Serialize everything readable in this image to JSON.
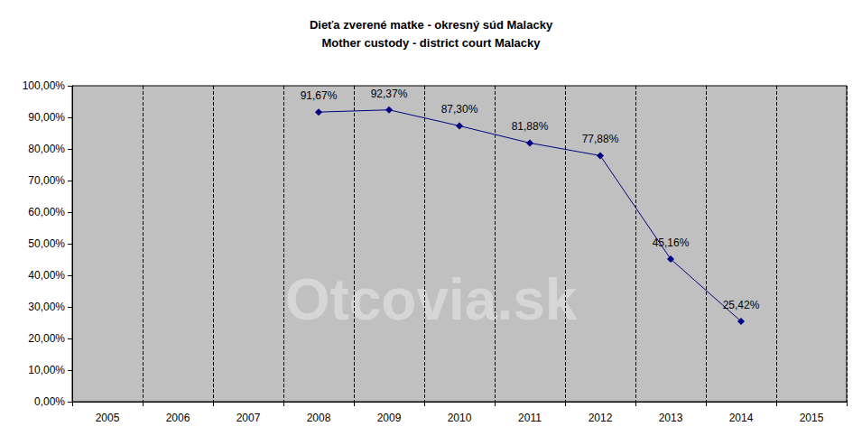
{
  "chart_data": {
    "type": "line",
    "title": "Dieťa zverené matke - okresný súd Malacky",
    "subtitle": "Mother custody - district court Malacky",
    "watermark": "Otcovia.sk",
    "categories": [
      "2005",
      "2006",
      "2007",
      "2008",
      "2009",
      "2010",
      "2011",
      "2012",
      "2013",
      "2014",
      "2015"
    ],
    "values": [
      null,
      null,
      null,
      91.67,
      92.37,
      87.3,
      81.88,
      77.88,
      45.16,
      25.42,
      null
    ],
    "value_labels": [
      null,
      null,
      null,
      "91,67%",
      "92,37%",
      "87,30%",
      "81,88%",
      "77,88%",
      "45,16%",
      "25,42%",
      null
    ],
    "color": "#000080",
    "marker": "diamond",
    "data_labels": true,
    "grid": "x",
    "ylim": [
      0,
      100
    ],
    "yticks": [
      {
        "value": 0,
        "label": "0,00%"
      },
      {
        "value": 10,
        "label": "10,00%"
      },
      {
        "value": 20,
        "label": "20,00%"
      },
      {
        "value": 30,
        "label": "30,00%"
      },
      {
        "value": 40,
        "label": "40,00%"
      },
      {
        "value": 50,
        "label": "50,00%"
      },
      {
        "value": 60,
        "label": "60,00%"
      },
      {
        "value": 70,
        "label": "70,00%"
      },
      {
        "value": 80,
        "label": "80,00%"
      },
      {
        "value": 90,
        "label": "90,00%"
      },
      {
        "value": 100,
        "label": "100,00%"
      }
    ]
  }
}
